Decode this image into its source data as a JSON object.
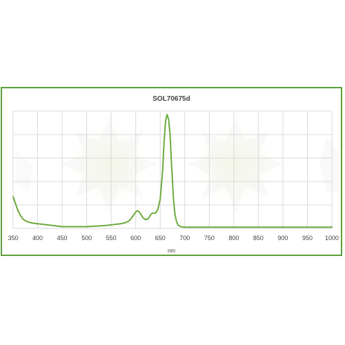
{
  "chart_data": {
    "type": "line",
    "title": "SOL70675d",
    "xlabel": "nm",
    "ylabel": "",
    "xlim": [
      350,
      1000
    ],
    "ylim": [
      0,
      1
    ],
    "xticks": [
      350,
      400,
      450,
      500,
      550,
      600,
      650,
      700,
      750,
      800,
      850,
      900,
      950,
      1000
    ],
    "grid": true,
    "legend": false,
    "series_color": "#6aaa3c",
    "series": [
      {
        "x": [
          350,
          355,
          360,
          365,
          370,
          375,
          380,
          390,
          400,
          410,
          420,
          430,
          440,
          450,
          460,
          470,
          480,
          500,
          520,
          540,
          550,
          560,
          570,
          580,
          585,
          590,
          595,
          600,
          603,
          606,
          609,
          612,
          615,
          620,
          625,
          628,
          631,
          634,
          637,
          640,
          645,
          650,
          655,
          658,
          661,
          664,
          667,
          670,
          673,
          675,
          677,
          680,
          683,
          686,
          689,
          692,
          695,
          700,
          705,
          710,
          720,
          730,
          750,
          800,
          850,
          900,
          950,
          1000
        ],
        "y": [
          0.27,
          0.21,
          0.15,
          0.11,
          0.08,
          0.065,
          0.055,
          0.045,
          0.04,
          0.035,
          0.03,
          0.025,
          0.02,
          0.015,
          0.015,
          0.015,
          0.015,
          0.015,
          0.02,
          0.025,
          0.03,
          0.035,
          0.04,
          0.05,
          0.06,
          0.08,
          0.11,
          0.14,
          0.15,
          0.145,
          0.13,
          0.11,
          0.09,
          0.075,
          0.08,
          0.1,
          0.12,
          0.13,
          0.13,
          0.13,
          0.16,
          0.25,
          0.5,
          0.75,
          0.92,
          0.97,
          0.93,
          0.8,
          0.55,
          0.4,
          0.25,
          0.12,
          0.06,
          0.03,
          0.02,
          0.015,
          0.012,
          0.01,
          0.01,
          0.01,
          0.01,
          0.01,
          0.01,
          0.01,
          0.01,
          0.01,
          0.01,
          0.01
        ]
      }
    ]
  }
}
